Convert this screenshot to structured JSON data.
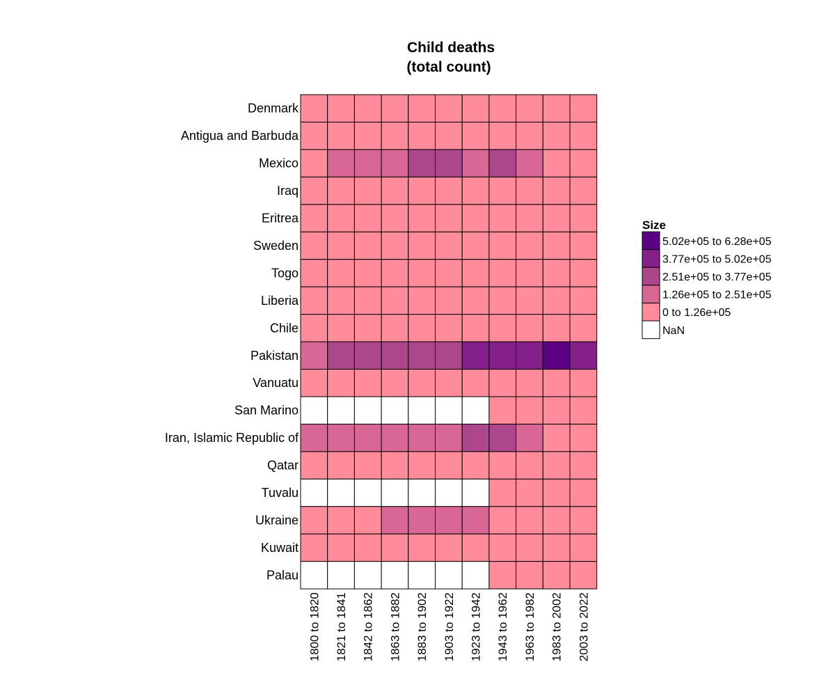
{
  "chart_data": {
    "type": "heatmap",
    "title": [
      "Child deaths",
      "(total count)"
    ],
    "xlabel": "",
    "ylabel": "",
    "columns": [
      "1800 to 1820",
      "1821 to 1841",
      "1842 to 1862",
      "1863 to 1882",
      "1883 to 1902",
      "1903 to 1922",
      "1923 to 1942",
      "1943 to 1962",
      "1963 to 1982",
      "1983 to 2002",
      "2003 to 2022"
    ],
    "rows": [
      "Denmark",
      "Antigua and Barbuda",
      "Mexico",
      "Iraq",
      "Eritrea",
      "Sweden",
      "Togo",
      "Liberia",
      "Chile",
      "Pakistan",
      "Vanuatu",
      "San Marino",
      "Iran, Islamic Republic of",
      "Qatar",
      "Tuvalu",
      "Ukraine",
      "Kuwait",
      "Palau"
    ],
    "bin_index_note": "",
    "cells": [
      [
        0,
        0,
        0,
        0,
        0,
        0,
        0,
        0,
        0,
        0,
        0
      ],
      [
        0,
        0,
        0,
        0,
        0,
        0,
        0,
        0,
        0,
        0,
        0
      ],
      [
        0,
        1,
        1,
        1,
        2,
        2,
        1,
        2,
        1,
        0,
        0
      ],
      [
        0,
        0,
        0,
        0,
        0,
        0,
        0,
        0,
        0,
        0,
        0
      ],
      [
        0,
        0,
        0,
        0,
        0,
        0,
        0,
        0,
        0,
        0,
        0
      ],
      [
        0,
        0,
        0,
        0,
        0,
        0,
        0,
        0,
        0,
        0,
        0
      ],
      [
        0,
        0,
        0,
        0,
        0,
        0,
        0,
        0,
        0,
        0,
        0
      ],
      [
        0,
        0,
        0,
        0,
        0,
        0,
        0,
        0,
        0,
        0,
        0
      ],
      [
        0,
        0,
        0,
        0,
        0,
        0,
        0,
        0,
        0,
        0,
        0
      ],
      [
        1,
        2,
        2,
        2,
        2,
        2,
        3,
        3,
        3,
        4,
        3
      ],
      [
        0,
        0,
        0,
        0,
        0,
        0,
        0,
        0,
        0,
        0,
        0
      ],
      [
        -1,
        -1,
        -1,
        -1,
        -1,
        -1,
        -1,
        0,
        0,
        0,
        0
      ],
      [
        1,
        1,
        1,
        1,
        1,
        1,
        2,
        2,
        1,
        0,
        0
      ],
      [
        0,
        0,
        0,
        0,
        0,
        0,
        0,
        0,
        0,
        0,
        0
      ],
      [
        -1,
        -1,
        -1,
        -1,
        -1,
        -1,
        -1,
        0,
        0,
        0,
        0
      ],
      [
        0,
        0,
        0,
        1,
        1,
        1,
        1,
        0,
        0,
        0,
        0
      ],
      [
        0,
        0,
        0,
        0,
        0,
        0,
        0,
        0,
        0,
        0,
        0
      ],
      [
        -1,
        -1,
        -1,
        -1,
        -1,
        -1,
        -1,
        0,
        0,
        0,
        0
      ]
    ],
    "legend": {
      "title": "Size",
      "placement": "right",
      "entries": [
        {
          "label": "5.02e+05  to  6.28e+05",
          "color": "#5b0082",
          "bin": 4
        },
        {
          "label": "3.77e+05  to  5.02e+05",
          "color": "#851f8a",
          "bin": 3
        },
        {
          "label": "2.51e+05  to  3.77e+05",
          "color": "#ad478c",
          "bin": 2
        },
        {
          "label": "1.26e+05  to  2.51e+05",
          "color": "#d86796",
          "bin": 1
        },
        {
          "label": "0  to  1.26e+05",
          "color": "#ff8b9b",
          "bin": 0
        },
        {
          "label": "NaN",
          "color": "#ffffff",
          "bin": -1
        }
      ]
    }
  }
}
